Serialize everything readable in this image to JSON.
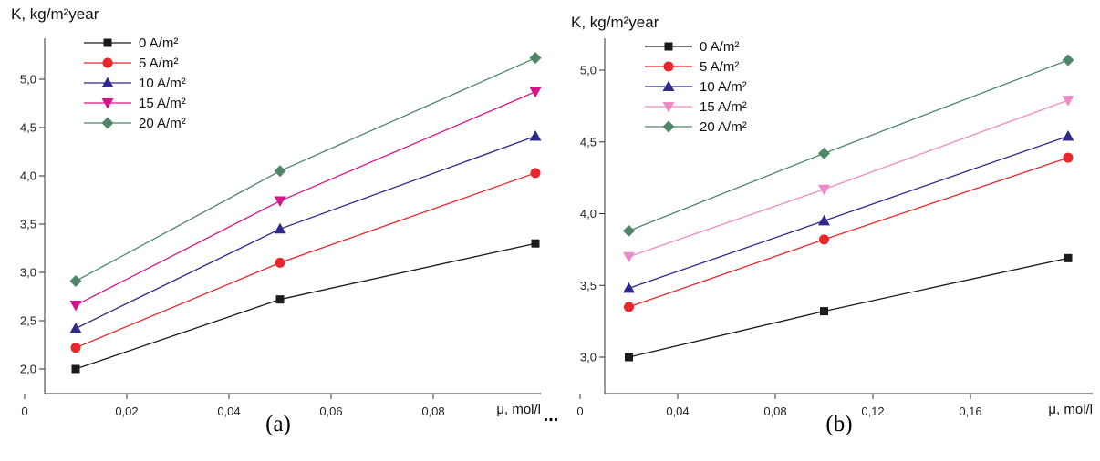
{
  "separator": "...",
  "chart_data": [
    {
      "type": "line",
      "panel_label": "(a)",
      "ylabel": "K, kg/m²year",
      "xlabel": "μ, mol/l",
      "xlim": [
        0,
        0.1
      ],
      "ylim": [
        1.75,
        5.5
      ],
      "x_ticks": [
        0,
        0.02,
        0.04,
        0.06,
        0.08
      ],
      "x_tick_labels": [
        "0",
        "0,02",
        "0,04",
        "0,06",
        "0,08"
      ],
      "y_ticks": [
        2.0,
        2.5,
        3.0,
        3.5,
        4.0,
        4.5,
        5.0
      ],
      "y_tick_labels": [
        "2,0",
        "2,5",
        "3,0",
        "3,5",
        "4,0",
        "4,5",
        "5,0"
      ],
      "x": [
        0.01,
        0.05,
        0.1
      ],
      "legend_position": "top-left",
      "grid": false,
      "series": [
        {
          "name": "0 A/m²",
          "color": "#1a1a1a",
          "marker": "square",
          "values": [
            2.0,
            2.72,
            3.3
          ]
        },
        {
          "name": "5 A/m²",
          "color": "#e8262b",
          "marker": "circle",
          "values": [
            2.22,
            3.1,
            4.03
          ]
        },
        {
          "name": "10 A/m²",
          "color": "#2e2a8c",
          "marker": "triangle-up",
          "values": [
            2.42,
            3.45,
            4.41
          ]
        },
        {
          "name": "15 A/m²",
          "color": "#d6138a",
          "marker": "triangle-down",
          "values": [
            2.66,
            3.74,
            4.87
          ]
        },
        {
          "name": "20 A/m²",
          "color": "#4f8668",
          "marker": "diamond",
          "values": [
            2.91,
            4.05,
            5.22
          ]
        }
      ]
    },
    {
      "type": "line",
      "panel_label": "(b)",
      "ylabel": "K, kg/m²year",
      "xlabel": "μ, mol/l",
      "xlim": [
        0,
        0.2
      ],
      "ylim": [
        2.75,
        5.35
      ],
      "x_ticks": [
        0,
        0.04,
        0.08,
        0.12,
        0.16
      ],
      "x_tick_labels": [
        "0",
        "0,04",
        "0,08",
        "0,12",
        "0,16"
      ],
      "y_ticks": [
        3.0,
        3.5,
        4.0,
        4.5,
        5.0
      ],
      "y_tick_labels": [
        "3,0",
        "3,5",
        "4,0",
        "4,5",
        "5,0"
      ],
      "x": [
        0.02,
        0.1,
        0.2
      ],
      "legend_position": "top-left",
      "grid": false,
      "series": [
        {
          "name": "0 A/m²",
          "color": "#1a1a1a",
          "marker": "square",
          "values": [
            3.0,
            3.32,
            3.69
          ]
        },
        {
          "name": "5 A/m²",
          "color": "#e8262b",
          "marker": "circle",
          "values": [
            3.35,
            3.82,
            4.39
          ]
        },
        {
          "name": "10 A/m²",
          "color": "#2e2a8c",
          "marker": "triangle-up",
          "values": [
            3.48,
            3.95,
            4.54
          ]
        },
        {
          "name": "15 A/m²",
          "color": "#ee8ac8",
          "marker": "triangle-down",
          "values": [
            3.7,
            4.17,
            4.79
          ]
        },
        {
          "name": "20 A/m²",
          "color": "#4f8668",
          "marker": "diamond",
          "values": [
            3.88,
            4.42,
            5.07
          ]
        }
      ]
    }
  ]
}
